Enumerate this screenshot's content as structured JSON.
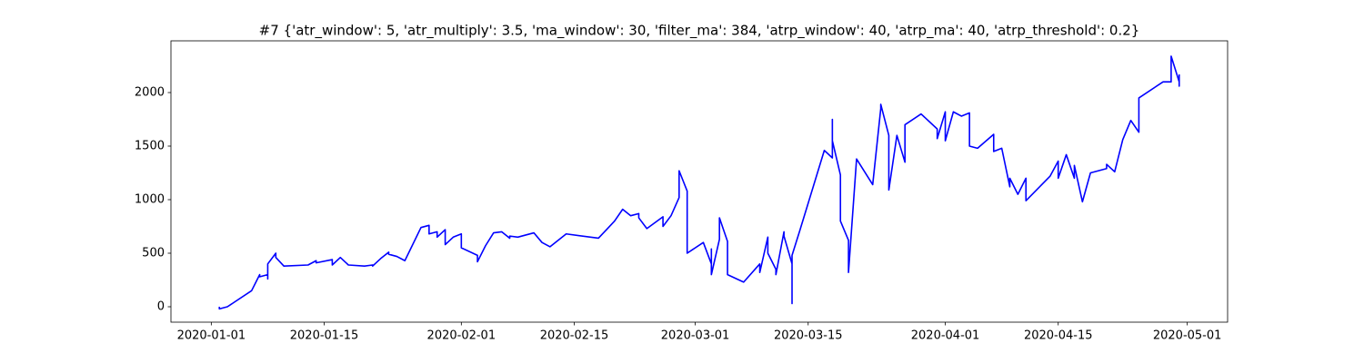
{
  "chart_data": {
    "type": "line",
    "title": "#7 {'atr_window': 5, 'atr_multiply': 3.5, 'ma_window': 30, 'filter_ma': 384, 'atrp_window': 40, 'atrp_ma': 40, 'atrp_threshold': 0.2}",
    "x": [
      "2020-01-02",
      "2020-01-02",
      "2020-01-03",
      "2020-01-04",
      "2020-01-06",
      "2020-01-07",
      "2020-01-07",
      "2020-01-08",
      "2020-01-08",
      "2020-01-08",
      "2020-01-09",
      "2020-01-09",
      "2020-01-10",
      "2020-01-13",
      "2020-01-14",
      "2020-01-14",
      "2020-01-16",
      "2020-01-16",
      "2020-01-17",
      "2020-01-18",
      "2020-01-20",
      "2020-01-21",
      "2020-01-21",
      "2020-01-22",
      "2020-01-23",
      "2020-01-23",
      "2020-01-24",
      "2020-01-25",
      "2020-01-27",
      "2020-01-28",
      "2020-01-28",
      "2020-01-29",
      "2020-01-29",
      "2020-01-30",
      "2020-01-30",
      "2020-01-31",
      "2020-02-01",
      "2020-02-01",
      "2020-02-03",
      "2020-02-03",
      "2020-02-04",
      "2020-02-05",
      "2020-02-06",
      "2020-02-07",
      "2020-02-07",
      "2020-02-08",
      "2020-02-10",
      "2020-02-11",
      "2020-02-12",
      "2020-02-14",
      "2020-02-18",
      "2020-02-19",
      "2020-02-20",
      "2020-02-21",
      "2020-02-22",
      "2020-02-23",
      "2020-02-23",
      "2020-02-24",
      "2020-02-26",
      "2020-02-26",
      "2020-02-27",
      "2020-02-28",
      "2020-02-28",
      "2020-02-29",
      "2020-02-29",
      "2020-03-02",
      "2020-03-03",
      "2020-03-03",
      "2020-03-03",
      "2020-03-03",
      "2020-03-04",
      "2020-03-04",
      "2020-03-05",
      "2020-03-05",
      "2020-03-05",
      "2020-03-07",
      "2020-03-09",
      "2020-03-09",
      "2020-03-10",
      "2020-03-10",
      "2020-03-11",
      "2020-03-11",
      "2020-03-12",
      "2020-03-12",
      "2020-03-13",
      "2020-03-13",
      "2020-03-13",
      "2020-03-14",
      "2020-03-17",
      "2020-03-18",
      "2020-03-18",
      "2020-03-18",
      "2020-03-19",
      "2020-03-19",
      "2020-03-20",
      "2020-03-20",
      "2020-03-21",
      "2020-03-23",
      "2020-03-24",
      "2020-03-24",
      "2020-03-25",
      "2020-03-25",
      "2020-03-26",
      "2020-03-27",
      "2020-03-27",
      "2020-03-29",
      "2020-03-31",
      "2020-03-31",
      "2020-04-01",
      "2020-04-01",
      "2020-04-01",
      "2020-04-02",
      "2020-04-03",
      "2020-04-04",
      "2020-04-04",
      "2020-04-05",
      "2020-04-07",
      "2020-04-07",
      "2020-04-08",
      "2020-04-09",
      "2020-04-09",
      "2020-04-10",
      "2020-04-11",
      "2020-04-11",
      "2020-04-14",
      "2020-04-15",
      "2020-04-15",
      "2020-04-16",
      "2020-04-17",
      "2020-04-17",
      "2020-04-18",
      "2020-04-19",
      "2020-04-21",
      "2020-04-21",
      "2020-04-22",
      "2020-04-23",
      "2020-04-24",
      "2020-04-25",
      "2020-04-25",
      "2020-04-28",
      "2020-04-29",
      "2020-04-29",
      "2020-04-30",
      "2020-04-30",
      "2020-04-30"
    ],
    "series": [
      {
        "color": "blue",
        "values": [
          0,
          -20,
          0,
          50,
          150,
          300,
          280,
          300,
          260,
          400,
          500,
          460,
          380,
          390,
          430,
          410,
          440,
          390,
          460,
          390,
          380,
          390,
          380,
          450,
          510,
          490,
          470,
          430,
          740,
          760,
          680,
          700,
          650,
          720,
          580,
          650,
          680,
          550,
          480,
          420,
          570,
          690,
          700,
          640,
          660,
          650,
          690,
          600,
          560,
          680,
          640,
          720,
          800,
          910,
          850,
          870,
          830,
          730,
          840,
          750,
          850,
          1020,
          1270,
          1080,
          500,
          600,
          400,
          540,
          380,
          300,
          630,
          830,
          610,
          440,
          300,
          230,
          400,
          320,
          650,
          500,
          350,
          300,
          700,
          660,
          400,
          30,
          480,
          720,
          1460,
          1390,
          1750,
          1550,
          1230,
          800,
          620,
          320,
          1380,
          1140,
          1850,
          1890,
          1600,
          1090,
          1600,
          1350,
          1700,
          1800,
          1660,
          1570,
          1820,
          1670,
          1550,
          1820,
          1780,
          1810,
          1500,
          1480,
          1610,
          1450,
          1480,
          1120,
          1200,
          1050,
          1200,
          990,
          1220,
          1360,
          1200,
          1420,
          1200,
          1320,
          980,
          1250,
          1290,
          1330,
          1260,
          1560,
          1740,
          1630,
          1950,
          2100,
          2100,
          2340,
          2100,
          2060,
          2170
        ]
      }
    ],
    "xlim": [
      "2019-12-27",
      "2020-05-06"
    ],
    "xticks": [
      "2020-01-01",
      "2020-01-15",
      "2020-02-01",
      "2020-02-15",
      "2020-03-01",
      "2020-03-15",
      "2020-04-01",
      "2020-04-15",
      "2020-05-01"
    ],
    "ylim": [
      -144,
      2483
    ],
    "yticks": [
      0,
      500,
      1000,
      1500,
      2000
    ],
    "grid": false
  }
}
